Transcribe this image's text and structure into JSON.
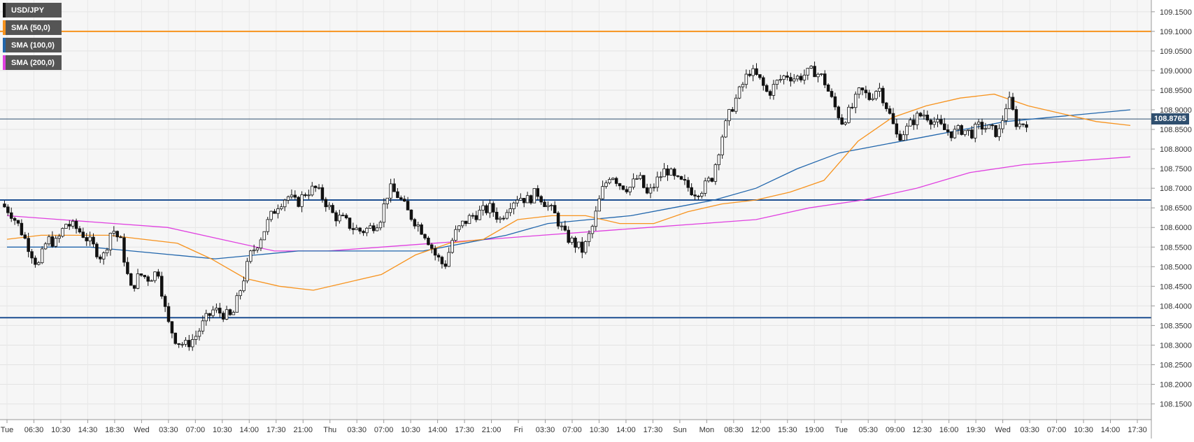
{
  "chart_data": {
    "type": "candlestick",
    "symbol": "USD/JPY",
    "ylim": [
      108.11,
      109.18
    ],
    "y_ticks": [
      "109.1500",
      "109.1000",
      "109.0500",
      "109.0000",
      "108.9500",
      "108.9000",
      "108.8500",
      "108.8000",
      "108.7500",
      "108.7000",
      "108.6500",
      "108.6000",
      "108.5500",
      "108.5000",
      "108.4500",
      "108.4000",
      "108.3500",
      "108.3000",
      "108.2500",
      "108.2000",
      "108.1500"
    ],
    "x_ticks": [
      "Tue",
      "06:30",
      "10:30",
      "14:30",
      "18:30",
      "Wed",
      "03:30",
      "07:00",
      "10:30",
      "14:00",
      "17:30",
      "21:00",
      "Thu",
      "03:30",
      "07:00",
      "10:30",
      "14:00",
      "17:30",
      "21:00",
      "Fri",
      "03:30",
      "07:00",
      "10:30",
      "14:00",
      "17:30",
      "Sun",
      "Mon",
      "08:30",
      "12:00",
      "15:30",
      "19:00",
      "Tue",
      "05:30",
      "09:00",
      "12:30",
      "16:00",
      "19:30",
      "Wed",
      "03:30",
      "07:00",
      "10:30",
      "14:00",
      "17:30"
    ],
    "current_price": "108.8765",
    "horizontal_levels": [
      {
        "price": 109.1,
        "color": "#f7931e"
      },
      {
        "price": 108.67,
        "color": "#1d4f91"
      },
      {
        "price": 108.37,
        "color": "#1d4f91"
      }
    ],
    "legend": [
      {
        "label": "USD/JPY",
        "color": "#111111"
      },
      {
        "label": "SMA (50,0)",
        "color": "#f7931e"
      },
      {
        "label": "SMA (100,0)",
        "color": "#2166ac"
      },
      {
        "label": "SMA (200,0)",
        "color": "#e040e0"
      }
    ],
    "price_path": [
      108.66,
      108.64,
      108.6,
      108.55,
      108.5,
      108.57,
      108.56,
      108.61,
      108.6,
      108.58,
      108.55,
      108.52,
      108.6,
      108.56,
      108.44,
      108.48,
      108.47,
      108.49,
      108.36,
      108.31,
      108.3,
      108.32,
      108.36,
      108.39,
      108.38,
      108.37,
      108.45,
      108.53,
      108.57,
      108.62,
      108.66,
      108.68,
      108.66,
      108.69,
      108.7,
      108.67,
      108.63,
      108.62,
      108.6,
      108.59,
      108.6,
      108.62,
      108.7,
      108.68,
      108.64,
      108.61,
      108.58,
      108.53,
      108.5,
      108.58,
      108.61,
      108.63,
      108.64,
      108.65,
      108.62,
      108.66,
      108.68,
      108.67,
      108.69,
      108.66,
      108.63,
      108.58,
      108.56,
      108.54,
      108.6,
      108.69,
      108.74,
      108.71,
      108.7,
      108.73,
      108.68,
      108.72,
      108.75,
      108.72,
      108.71,
      108.69,
      108.7,
      108.73,
      108.83,
      108.9,
      108.95,
      109.0,
      108.98,
      108.94,
      108.97,
      108.99,
      108.98,
      108.99,
      109.0,
      108.98,
      108.92,
      108.87,
      108.9,
      108.95,
      108.93,
      108.96,
      108.9,
      108.83,
      108.85,
      108.88,
      108.89,
      108.87,
      108.85,
      108.84,
      108.85,
      108.84,
      108.86,
      108.85,
      108.84,
      108.93,
      108.86,
      108.87
    ],
    "sma50": [
      108.57,
      108.58,
      108.58,
      108.58,
      108.57,
      108.56,
      108.52,
      108.47,
      108.45,
      108.44,
      108.46,
      108.48,
      108.53,
      108.56,
      108.57,
      108.62,
      108.63,
      108.63,
      108.61,
      108.61,
      108.64,
      108.66,
      108.67,
      108.69,
      108.72,
      108.82,
      108.88,
      108.91,
      108.93,
      108.94,
      108.91,
      108.89,
      108.87,
      108.86
    ],
    "sma100": [
      108.55,
      108.55,
      108.55,
      108.54,
      108.53,
      108.52,
      108.53,
      108.54,
      108.54,
      108.54,
      108.54,
      108.56,
      108.58,
      108.61,
      108.62,
      108.63,
      108.65,
      108.67,
      108.7,
      108.75,
      108.79,
      108.81,
      108.83,
      108.85,
      108.87,
      108.88,
      108.89,
      108.9
    ],
    "sma200": [
      108.63,
      108.62,
      108.61,
      108.6,
      108.57,
      108.54,
      108.54,
      108.55,
      108.56,
      108.57,
      108.58,
      108.59,
      108.6,
      108.61,
      108.62,
      108.65,
      108.67,
      108.7,
      108.74,
      108.76,
      108.77,
      108.78
    ]
  }
}
